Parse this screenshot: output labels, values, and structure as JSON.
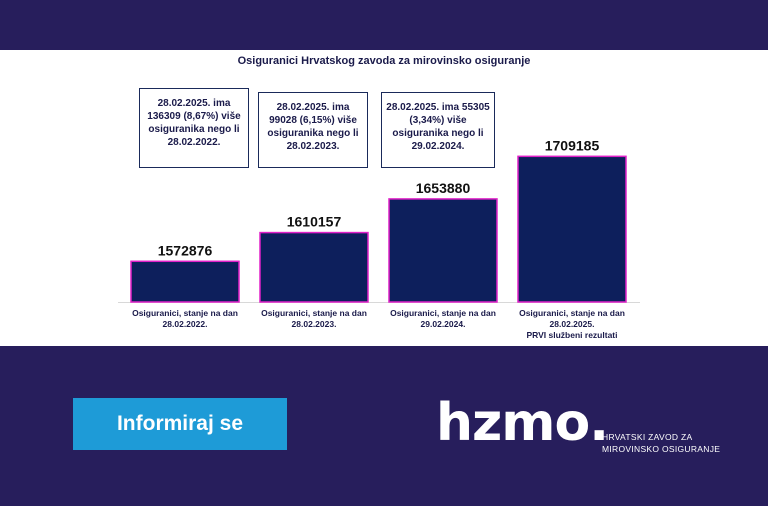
{
  "chart_data": {
    "type": "bar",
    "title": "Osiguranici Hrvatskog zavoda za mirovinsko osiguranje",
    "categories": [
      [
        "Osiguranici, stanje na dan",
        "28.02.2022."
      ],
      [
        "Osiguranici, stanje na dan",
        "28.02.2023."
      ],
      [
        "Osiguranici, stanje na dan",
        "29.02.2024."
      ],
      [
        "Osiguranici, stanje na dan",
        "28.02.2025.",
        "PRVI službeni rezultati"
      ]
    ],
    "values": [
      1572876,
      1610157,
      1653880,
      1709185
    ],
    "value_labels": [
      "1572876",
      "1610157",
      "1653880",
      "1709185"
    ],
    "ylim": [
      1520000,
      1720000
    ],
    "bar_color": "#0d1f5c",
    "bar_outline": "#e020c8",
    "annotations": [
      [
        "28.02.2025. ima",
        "136309 (8,67%) više",
        "osiguranika nego li",
        "28.02.2022."
      ],
      [
        "28.02.2025. ima",
        "99028 (6,15%) više",
        "osiguranika nego li",
        "28.02.2023."
      ],
      [
        "28.02.2025. ima 55305",
        "(3,34%) više",
        "osiguranika nego li",
        "29.02.2024."
      ]
    ]
  },
  "cta": {
    "label": "Informiraj se"
  },
  "logo": {
    "word": "hzmo.",
    "line1": "HRVATSKI ZAVOD ZA",
    "line2": "MIROVINSKO OSIGURANJE"
  }
}
